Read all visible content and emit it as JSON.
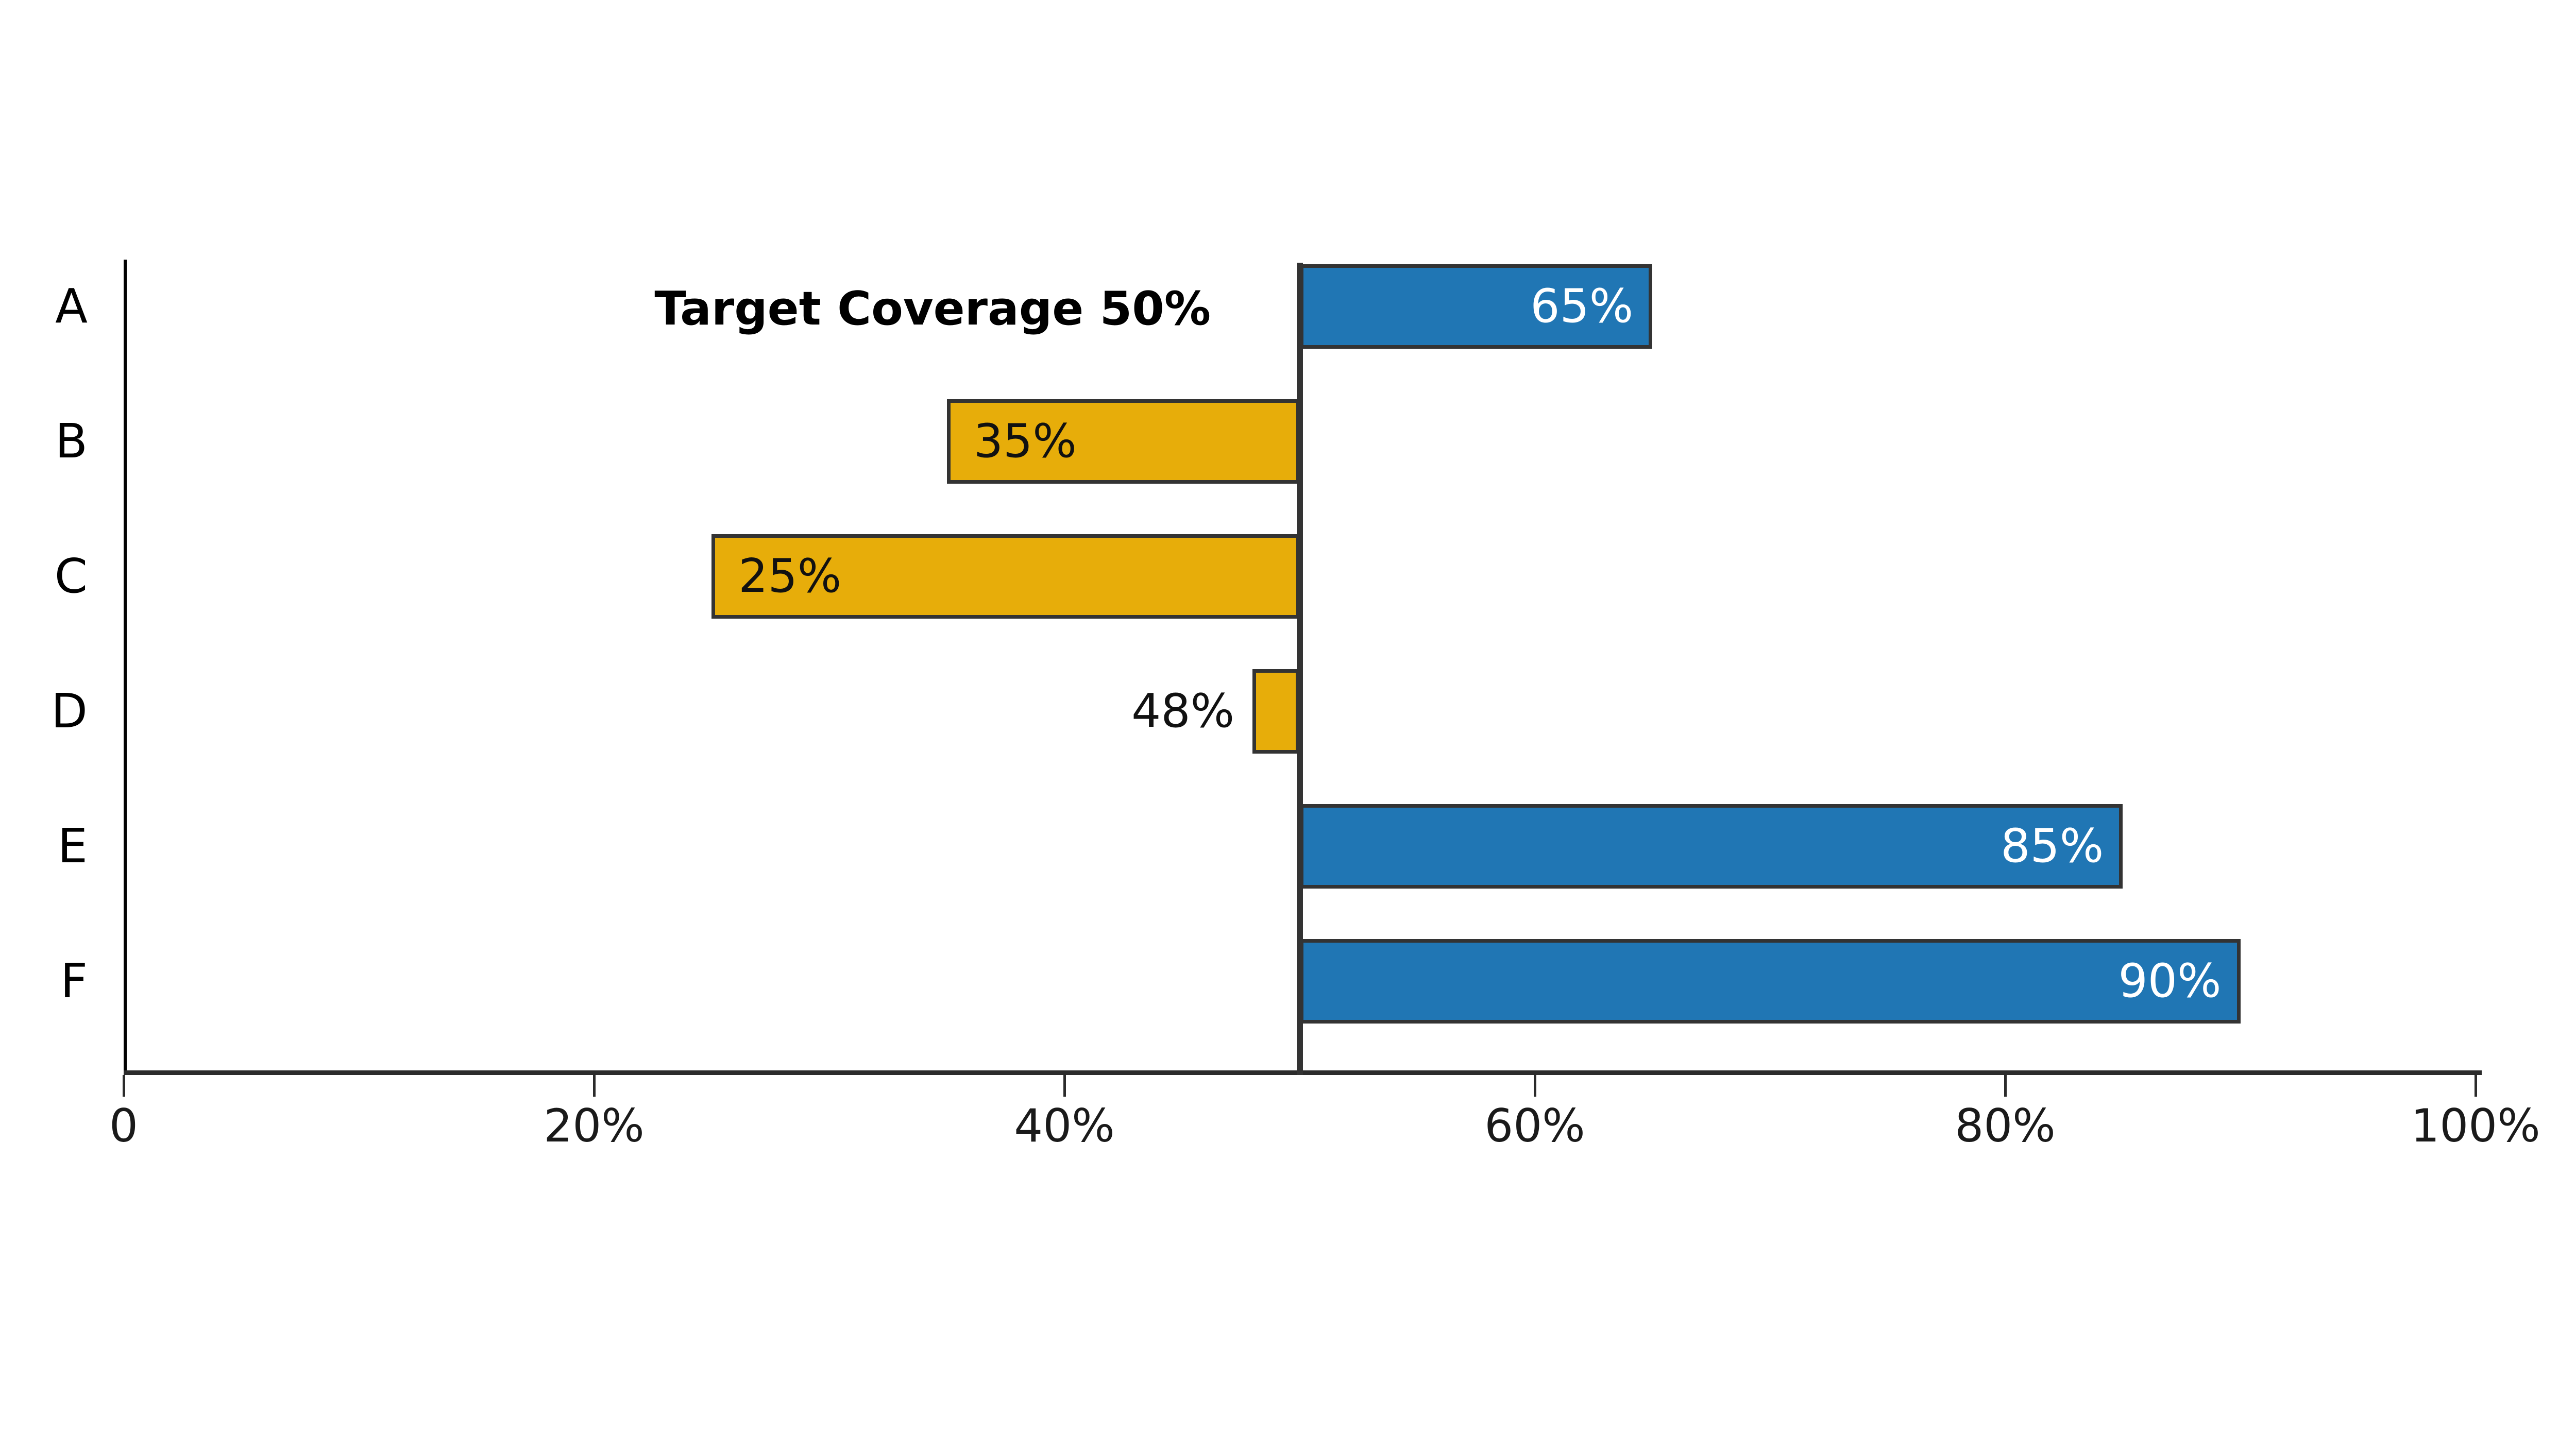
{
  "chart_data": {
    "type": "bar",
    "orientation": "horizontal",
    "title": "Target Coverage 50%",
    "target": {
      "value": 50,
      "label_in_title": "50%"
    },
    "xlim": [
      0,
      100
    ],
    "grid": false,
    "legend": null,
    "categories": [
      "A",
      "B",
      "C",
      "D",
      "E",
      "F"
    ],
    "values": [
      65,
      35,
      25,
      48,
      85,
      90
    ],
    "rows": [
      {
        "category": "A",
        "value": 65,
        "label": "65%",
        "status": "above_target",
        "label_placement": "inside_end",
        "label_color": "#ffffff"
      },
      {
        "category": "B",
        "value": 35,
        "label": "35%",
        "status": "below_target",
        "label_placement": "inside_start",
        "label_color": "#111111"
      },
      {
        "category": "C",
        "value": 25,
        "label": "25%",
        "status": "below_target",
        "label_placement": "inside_start",
        "label_color": "#111111"
      },
      {
        "category": "D",
        "value": 48,
        "label": "48%",
        "status": "below_target",
        "label_placement": "outside_start",
        "label_color": "#111111"
      },
      {
        "category": "E",
        "value": 85,
        "label": "85%",
        "status": "above_target",
        "label_placement": "inside_end",
        "label_color": "#ffffff"
      },
      {
        "category": "F",
        "value": 90,
        "label": "90%",
        "status": "above_target",
        "label_placement": "inside_end",
        "label_color": "#ffffff"
      }
    ],
    "x_ticks": [
      {
        "value": 0,
        "label": "0"
      },
      {
        "value": 20,
        "label": "20%"
      },
      {
        "value": 40,
        "label": "40%"
      },
      {
        "value": 60,
        "label": "60%"
      },
      {
        "value": 80,
        "label": "80%"
      },
      {
        "value": 100,
        "label": "100%"
      }
    ],
    "colors": {
      "above_target": "#2076B4",
      "below_target": "#E7AD0A",
      "bar_border": "#333333",
      "target_line": "#333333",
      "x_axis": "#2B2B2B",
      "y_axis": "#000000",
      "tick_label": "#1a1a1a",
      "category_label": "#000000"
    }
  }
}
